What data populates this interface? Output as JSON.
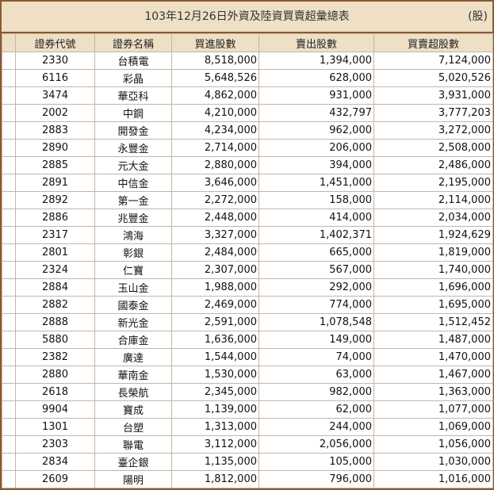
{
  "title": "103年12月26日外資及陸資買賣超彙總表",
  "unit": "(股)",
  "headers": [
    "證券代號",
    "證券名稱",
    "買進股數",
    "賣出股數",
    "買賣超股數"
  ],
  "rows": [
    [
      "2330",
      "台積電",
      "8,518,000",
      "1,394,000",
      "7,124,000"
    ],
    [
      "6116",
      "彩晶",
      "5,648,526",
      "628,000",
      "5,020,526"
    ],
    [
      "3474",
      "華亞科",
      "4,862,000",
      "931,000",
      "3,931,000"
    ],
    [
      "2002",
      "中鋼",
      "4,210,000",
      "432,797",
      "3,777,203"
    ],
    [
      "2883",
      "開發金",
      "4,234,000",
      "962,000",
      "3,272,000"
    ],
    [
      "2890",
      "永豐金",
      "2,714,000",
      "206,000",
      "2,508,000"
    ],
    [
      "2885",
      "元大金",
      "2,880,000",
      "394,000",
      "2,486,000"
    ],
    [
      "2891",
      "中信金",
      "3,646,000",
      "1,451,000",
      "2,195,000"
    ],
    [
      "2892",
      "第一金",
      "2,272,000",
      "158,000",
      "2,114,000"
    ],
    [
      "2886",
      "兆豐金",
      "2,448,000",
      "414,000",
      "2,034,000"
    ],
    [
      "2317",
      "鴻海",
      "3,327,000",
      "1,402,371",
      "1,924,629"
    ],
    [
      "2801",
      "彰銀",
      "2,484,000",
      "665,000",
      "1,819,000"
    ],
    [
      "2324",
      "仁寶",
      "2,307,000",
      "567,000",
      "1,740,000"
    ],
    [
      "2884",
      "玉山金",
      "1,988,000",
      "292,000",
      "1,696,000"
    ],
    [
      "2882",
      "國泰金",
      "2,469,000",
      "774,000",
      "1,695,000"
    ],
    [
      "2888",
      "新光金",
      "2,591,000",
      "1,078,548",
      "1,512,452"
    ],
    [
      "5880",
      "合庫金",
      "1,636,000",
      "149,000",
      "1,487,000"
    ],
    [
      "2382",
      "廣達",
      "1,544,000",
      "74,000",
      "1,470,000"
    ],
    [
      "2880",
      "華南金",
      "1,530,000",
      "63,000",
      "1,467,000"
    ],
    [
      "2618",
      "長榮航",
      "2,345,000",
      "982,000",
      "1,363,000"
    ],
    [
      "9904",
      "寶成",
      "1,139,000",
      "62,000",
      "1,077,000"
    ],
    [
      "1301",
      "台塑",
      "1,313,000",
      "244,000",
      "1,069,000"
    ],
    [
      "2303",
      "聯電",
      "3,112,000",
      "2,056,000",
      "1,056,000"
    ],
    [
      "2834",
      "臺企銀",
      "1,135,000",
      "105,000",
      "1,030,000"
    ],
    [
      "2609",
      "陽明",
      "1,812,000",
      "796,000",
      "1,016,000"
    ]
  ]
}
